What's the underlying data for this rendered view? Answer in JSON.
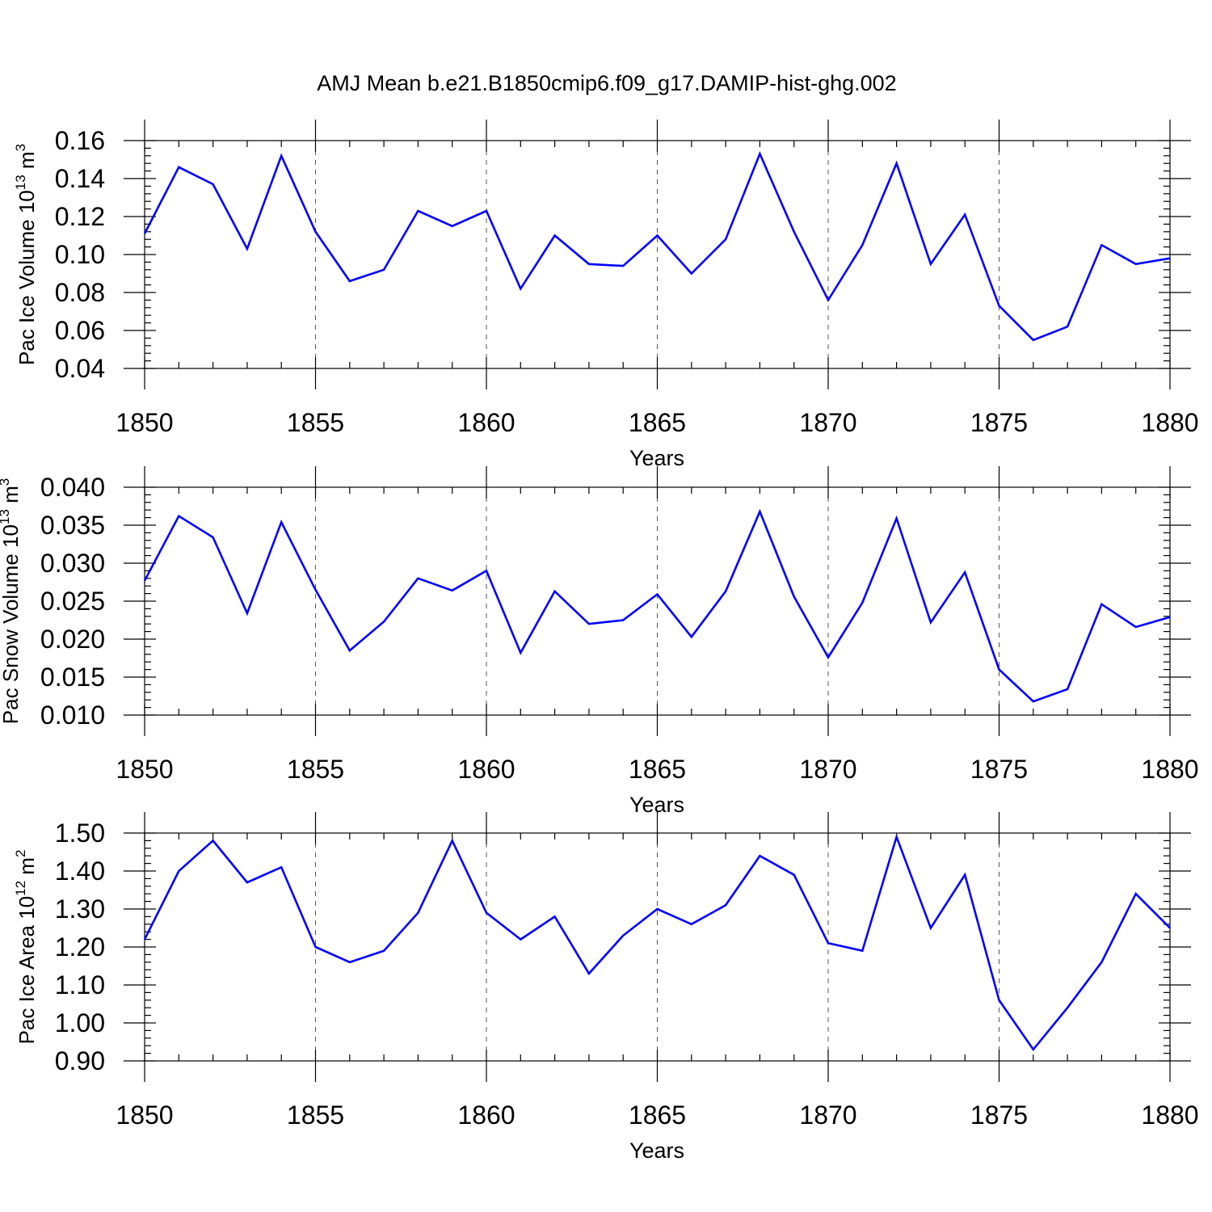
{
  "title": "AMJ Mean b.e21.B1850cmip6.f09_g17.DAMIP-hist-ghg.002",
  "colors": {
    "series": "#0000ff",
    "axis": "#000000",
    "grid": "#555555"
  },
  "chart_data": [
    {
      "type": "line",
      "xlabel": "Years",
      "ylabel": {
        "prefix": "Pac Ice Volume 10",
        "exp": "13",
        "unit": " m",
        "unit_exp": "3"
      },
      "xlim": [
        1850,
        1880
      ],
      "ylim": [
        0.04,
        0.16
      ],
      "xticks": [
        "1850",
        "1855",
        "1860",
        "1865",
        "1870",
        "1875",
        "1880"
      ],
      "yticks": [
        "0.04",
        "0.06",
        "0.08",
        "0.10",
        "0.12",
        "0.14",
        "0.16"
      ],
      "grid": "vertical dashed at major x ticks",
      "x": [
        1850,
        1851,
        1852,
        1853,
        1854,
        1855,
        1856,
        1857,
        1858,
        1859,
        1860,
        1861,
        1862,
        1863,
        1864,
        1865,
        1866,
        1867,
        1868,
        1869,
        1870,
        1871,
        1872,
        1873,
        1874,
        1875,
        1876,
        1877,
        1878,
        1879,
        1880
      ],
      "values": [
        0.111,
        0.146,
        0.137,
        0.103,
        0.152,
        0.112,
        0.086,
        0.092,
        0.123,
        0.115,
        0.123,
        0.082,
        0.11,
        0.095,
        0.094,
        0.11,
        0.09,
        0.108,
        0.153,
        0.112,
        0.076,
        0.105,
        0.148,
        0.095,
        0.121,
        0.073,
        0.055,
        0.062,
        0.105,
        0.095,
        0.098
      ]
    },
    {
      "type": "line",
      "xlabel": "Years",
      "ylabel": {
        "prefix": "Pac Snow Volume 10",
        "exp": "13",
        "unit": " m",
        "unit_exp": "3"
      },
      "xlim": [
        1850,
        1880
      ],
      "ylim": [
        0.01,
        0.04
      ],
      "xticks": [
        "1850",
        "1855",
        "1860",
        "1865",
        "1870",
        "1875",
        "1880"
      ],
      "yticks": [
        "0.010",
        "0.015",
        "0.020",
        "0.025",
        "0.030",
        "0.035",
        "0.040"
      ],
      "grid": "vertical dashed at major x ticks",
      "x": [
        1850,
        1851,
        1852,
        1853,
        1854,
        1855,
        1856,
        1857,
        1858,
        1859,
        1860,
        1861,
        1862,
        1863,
        1864,
        1865,
        1866,
        1867,
        1868,
        1869,
        1870,
        1871,
        1872,
        1873,
        1874,
        1875,
        1876,
        1877,
        1878,
        1879,
        1880
      ],
      "values": [
        0.0277,
        0.0362,
        0.0334,
        0.0234,
        0.0354,
        0.0265,
        0.0185,
        0.0223,
        0.028,
        0.0264,
        0.029,
        0.0182,
        0.0263,
        0.022,
        0.0225,
        0.0259,
        0.0203,
        0.0263,
        0.0368,
        0.0256,
        0.0176,
        0.0248,
        0.0359,
        0.0222,
        0.0288,
        0.016,
        0.0118,
        0.0134,
        0.0246,
        0.0216,
        0.0229
      ]
    },
    {
      "type": "line",
      "xlabel": "Years",
      "ylabel": {
        "prefix": "Pac Ice Area 10",
        "exp": "12",
        "unit": " m",
        "unit_exp": "2"
      },
      "xlim": [
        1850,
        1880
      ],
      "ylim": [
        0.9,
        1.5
      ],
      "xticks": [
        "1850",
        "1855",
        "1860",
        "1865",
        "1870",
        "1875",
        "1880"
      ],
      "yticks": [
        "0.90",
        "1.00",
        "1.10",
        "1.20",
        "1.30",
        "1.40",
        "1.50"
      ],
      "grid": "vertical dashed at major x ticks",
      "x": [
        1850,
        1851,
        1852,
        1853,
        1854,
        1855,
        1856,
        1857,
        1858,
        1859,
        1860,
        1861,
        1862,
        1863,
        1864,
        1865,
        1866,
        1867,
        1868,
        1869,
        1870,
        1871,
        1872,
        1873,
        1874,
        1875,
        1876,
        1877,
        1878,
        1879,
        1880
      ],
      "values": [
        1.22,
        1.4,
        1.48,
        1.37,
        1.41,
        1.2,
        1.16,
        1.19,
        1.29,
        1.48,
        1.29,
        1.22,
        1.28,
        1.13,
        1.23,
        1.3,
        1.26,
        1.31,
        1.44,
        1.39,
        1.21,
        1.19,
        1.49,
        1.25,
        1.39,
        1.06,
        0.93,
        1.04,
        1.16,
        1.34,
        1.25
      ]
    }
  ]
}
